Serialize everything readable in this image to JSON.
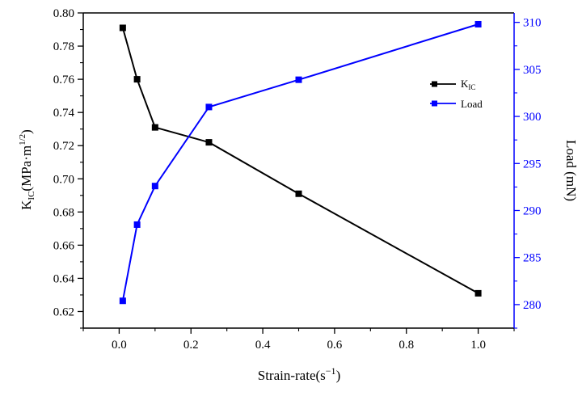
{
  "chart_data": {
    "type": "line",
    "xlabel": "Strain-rate(s",
    "xlabel_sup": "−1",
    "xlabel_end": ")",
    "ylabel_left": {
      "base": "K",
      "sub": "IC",
      "text": "(MPa·m",
      "sup": "1/2",
      "end": ")"
    },
    "ylabel_right": "Load (mN)",
    "xlim": [
      -0.1,
      1.1
    ],
    "ylim_left": [
      0.61,
      0.8
    ],
    "ylim_right": [
      277.5,
      311
    ],
    "x_ticks": [
      "0.0",
      "0.2",
      "0.4",
      "0.6",
      "0.8",
      "1.0"
    ],
    "y_left_ticks": [
      "0.62",
      "0.64",
      "0.66",
      "0.68",
      "0.70",
      "0.72",
      "0.74",
      "0.76",
      "0.78",
      "0.80"
    ],
    "y_right_ticks": [
      "280",
      "285",
      "290",
      "295",
      "300",
      "305",
      "310"
    ],
    "legend_position": "top-right",
    "series": [
      {
        "name": "K",
        "name_sub": "IC",
        "axis": "left",
        "color": "#000000",
        "x": [
          0.01,
          0.05,
          0.1,
          0.25,
          0.5,
          1.0
        ],
        "y": [
          0.791,
          0.76,
          0.731,
          0.722,
          0.691,
          0.631
        ]
      },
      {
        "name": "Load",
        "axis": "right",
        "color": "#0000ff",
        "x": [
          0.01,
          0.05,
          0.1,
          0.25,
          0.5,
          1.0
        ],
        "y": [
          280.4,
          288.5,
          292.6,
          301.0,
          303.9,
          309.8
        ]
      }
    ]
  }
}
